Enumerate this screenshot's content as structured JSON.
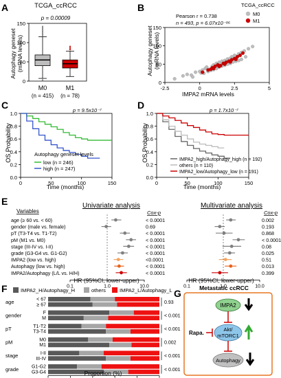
{
  "panels": {
    "A": {
      "letter": "A",
      "title": "TCGA_ccRCC",
      "pvalue": "p = 0.00009",
      "ylabel_line1": "Autophagy geneset",
      "ylabel_line2": "(mRNA levels)",
      "yticks": [
        "0",
        "50",
        "100",
        "150"
      ],
      "groups": [
        {
          "name": "M0",
          "n": "(n = 415)",
          "color": "#bdbdbd",
          "q1": 40,
          "median": 55,
          "q3": 68,
          "whisker_low": 7,
          "whisker_high": 115
        },
        {
          "name": "M1",
          "n": "(n = 78)",
          "color": "#cc0000",
          "q1": 34,
          "median": 45,
          "q3": 55,
          "whisker_low": 12,
          "whisker_high": 78
        }
      ]
    },
    "B": {
      "letter": "B",
      "stats_line1": "Pearson r = 0.738",
      "stats_line2": "n = 493, p = 6.07x10⁻⁸⁶",
      "legend_title": "TCGA_ccRCC",
      "legend": [
        {
          "label": "M0",
          "color": "#bdbdbd"
        },
        {
          "label": "M1",
          "color": "#cc0000"
        }
      ],
      "ylabel_line1": "Autophagy geneset",
      "ylabel_line2": "(mRNA levels)",
      "xlabel": "IMPA2 mRNA levels",
      "xticks": [
        "-2.5",
        "0",
        "2.5",
        "5"
      ],
      "yticks": [
        "0",
        "50",
        "100",
        "150"
      ]
    },
    "C": {
      "letter": "C",
      "pvalue": "p = 9.5x10⁻⁷",
      "ylabel": "OS Probability",
      "xlabel": "Time (months)",
      "xticks": [
        "0",
        "50",
        "100",
        "150"
      ],
      "yticks": [
        "0.0",
        "0.2",
        "0.4",
        "0.6",
        "0.8",
        "1.0"
      ],
      "legend_title": "Autophagy geneset levels",
      "series": [
        {
          "label": "low (n = 246)",
          "color": "#33bb33"
        },
        {
          "label": "high (n = 247)",
          "color": "#3355cc"
        }
      ]
    },
    "D": {
      "letter": "D",
      "pvalue": "p = 1.7x10⁻⁷",
      "ylabel": "OS Probability",
      "xlabel": "Time (months)",
      "xticks": [
        "0",
        "50",
        "100",
        "150"
      ],
      "yticks": [
        "0.0",
        "0.2",
        "0.4",
        "0.6",
        "0.8",
        "1.0"
      ],
      "series": [
        {
          "label": "IMPA2_high/Autophagy_high (n = 192)",
          "color": "#666666"
        },
        {
          "label": "others (n = 110)",
          "color": "#bbbbbb"
        },
        {
          "label": "IMPA2_low/Autophagy_low (n = 191)",
          "color": "#cc0000"
        }
      ]
    },
    "E": {
      "letter": "E",
      "variables_header": "Variables",
      "uni_title": "Univariate analysis",
      "multi_title": "Multivariate analysis",
      "coxp_header": "Cox-p",
      "xlabel": "HR (95%CI, lower-upper)",
      "xticks": [
        "0.1",
        "1.0",
        "10.0"
      ],
      "rows": [
        {
          "label": "age (≥ 60 vs. < 60)",
          "color": "#808080",
          "uni_hr": 1.7,
          "uni_lo": 1.3,
          "uni_hi": 2.4,
          "uni_p": "< 0.0001",
          "multi_hr": 1.6,
          "multi_lo": 1.2,
          "multi_hi": 2.2,
          "multi_p": "0.002"
        },
        {
          "label": "gender (male vs. female)",
          "color": "#808080",
          "uni_hr": 0.94,
          "uni_lo": 0.7,
          "uni_hi": 1.28,
          "uni_p": "0.69",
          "multi_hr": 0.8,
          "multi_lo": 0.58,
          "multi_hi": 1.1,
          "multi_p": "0.193"
        },
        {
          "label": "pT (T3-T4 vs. T1-T2)",
          "color": "#808080",
          "uni_hr": 3.0,
          "uni_lo": 2.2,
          "uni_hi": 4.1,
          "uni_p": "< 0.0001",
          "multi_hr": 1.05,
          "multi_lo": 0.62,
          "multi_hi": 1.8,
          "multi_p": "0.868"
        },
        {
          "label": "pM (M1 vs. M0)",
          "color": "#808080",
          "uni_hr": 4.4,
          "uni_lo": 3.2,
          "uni_hi": 6.0,
          "uni_p": "< 0.0001",
          "multi_hr": 2.6,
          "multi_lo": 1.8,
          "multi_hi": 3.9,
          "multi_p": "< 0.0001"
        },
        {
          "label": "stage (III-IV vs. I-II)",
          "color": "#808080",
          "uni_hr": 3.8,
          "uni_lo": 2.7,
          "uni_hi": 5.3,
          "uni_p": "< 0.0001",
          "multi_hr": 1.7,
          "multi_lo": 0.95,
          "multi_hi": 3.1,
          "multi_p": "0.08"
        },
        {
          "label": "grade (G3-G4 vs. G1-G2)",
          "color": "#808080",
          "uni_hr": 2.6,
          "uni_lo": 1.9,
          "uni_hi": 3.6,
          "uni_p": "< 0.0001",
          "multi_hr": 1.5,
          "multi_lo": 1.05,
          "multi_hi": 2.1,
          "multi_p": "0.025"
        },
        {
          "label": "IMPA2 (low vs. high)",
          "color": "#f4a460",
          "uni_hr": 2.0,
          "uni_lo": 1.5,
          "uni_hi": 2.7,
          "uni_p": "<0.0001",
          "multi_hr": 1.15,
          "multi_lo": 0.76,
          "multi_hi": 1.7,
          "multi_p": "0.51"
        },
        {
          "label": "Autophagy (low vs. high)",
          "color": "#e8621a",
          "uni_hr": 2.1,
          "uni_lo": 1.55,
          "uni_hi": 2.85,
          "uni_p": "< 0.0001",
          "multi_hr": 1.6,
          "multi_lo": 1.1,
          "multi_hi": 2.3,
          "multi_p": "0.013"
        },
        {
          "label": "IMPA2/Autophagy (L/L vs. H/H)",
          "color": "#cc0000",
          "uni_hr": 2.4,
          "uni_lo": 1.7,
          "uni_hi": 3.4,
          "uni_p": "< 0.0001",
          "multi_hr": 0.8,
          "multi_lo": 0.48,
          "multi_hi": 1.35,
          "multi_p": "0.399"
        }
      ]
    },
    "F": {
      "letter": "F",
      "legend": [
        {
          "label": "IMPA2_H/Autophagy_H",
          "color": "#595959"
        },
        {
          "label": "others",
          "color": "#a6a6a6"
        },
        {
          "label": "IMPA2_L/Autophagy_L",
          "color": "#ee1111"
        }
      ],
      "xlabel": "Proportion (%)",
      "xticks": [
        "0",
        "20",
        "40",
        "60",
        "80",
        "100"
      ],
      "groups": [
        {
          "name": "age",
          "pvalue": "0.93",
          "bars": [
            {
              "label": "< 67",
              "dark": 38,
              "gray": 22,
              "red": 40
            },
            {
              "label": "≥ 67",
              "dark": 40,
              "gray": 22,
              "red": 38
            }
          ]
        },
        {
          "name": "gender",
          "pvalue": "< 0.001",
          "bars": [
            {
              "label": "F",
              "dark": 55,
              "gray": 22,
              "red": 23
            },
            {
              "label": "M",
              "dark": 32,
              "gray": 22,
              "red": 46
            }
          ]
        },
        {
          "name": "pT",
          "pvalue": "< 0.001",
          "bars": [
            {
              "label": "T1-T2",
              "dark": 30,
              "gray": 22,
              "red": 48
            },
            {
              "label": "T3-T4",
              "dark": 52,
              "gray": 22,
              "red": 26
            }
          ]
        },
        {
          "name": "pM",
          "pvalue": "0.002",
          "bars": [
            {
              "label": "M0",
              "dark": 36,
              "gray": 22,
              "red": 42
            },
            {
              "label": "M1",
              "dark": 55,
              "gray": 20,
              "red": 25
            }
          ]
        },
        {
          "name": "stage",
          "pvalue": "< 0.001",
          "bars": [
            {
              "label": "I-II",
              "dark": 28,
              "gray": 22,
              "red": 50
            },
            {
              "label": "III-IV",
              "dark": 52,
              "gray": 22,
              "red": 26
            }
          ]
        },
        {
          "name": "grade",
          "pvalue": "< 0.001",
          "bars": [
            {
              "label": "G1-G2",
              "dark": 26,
              "gray": 22,
              "red": 52
            },
            {
              "label": "G3-G4",
              "dark": 50,
              "gray": 22,
              "red": 28
            }
          ]
        }
      ]
    },
    "G": {
      "letter": "G",
      "title": "Metastatic ccRCC",
      "node_impa2": "IMPA2",
      "node_akt_line1": "Akt/",
      "node_akt_line2": "mTORC1",
      "node_autophagy": "Autophagy",
      "drug": "Rapa.",
      "colors": {
        "border": "#e87722",
        "impa2": "#8fd18f",
        "akt": "#8ec6ea",
        "autophagy": "#c0c0c0",
        "inhibit": "#cc0000",
        "up": "#33aa33"
      }
    }
  },
  "chart_data": [
    {
      "panel": "A",
      "type": "box",
      "title": "TCGA_ccRCC",
      "ylabel": "Autophagy geneset (mRNA levels)",
      "categories": [
        "M0",
        "M1"
      ],
      "ylim": [
        0,
        150
      ],
      "summary": [
        {
          "name": "M0",
          "q1": 40,
          "median": 55,
          "q3": 68,
          "whisker_low": 7,
          "whisker_high": 115
        },
        {
          "name": "M1",
          "q1": 34,
          "median": 45,
          "q3": 55,
          "whisker_low": 12,
          "whisker_high": 78
        }
      ]
    },
    {
      "panel": "B",
      "type": "scatter",
      "xlabel": "IMPA2 mRNA levels",
      "ylabel": "Autophagy geneset (mRNA levels)",
      "xlim": [
        -2.5,
        5
      ],
      "ylim": [
        0,
        150
      ],
      "series": [
        {
          "name": "M0",
          "x": [
            -1.8,
            -1.2,
            -0.9,
            -0.6,
            -0.3,
            0.0,
            0.2,
            0.4,
            0.5,
            0.7,
            0.9,
            1.0,
            1.1,
            1.2,
            1.3,
            1.4,
            1.5,
            1.6,
            1.7,
            1.8,
            1.9,
            2.0,
            2.1,
            2.2,
            2.3,
            2.4,
            2.5,
            2.6,
            2.8,
            3.0,
            3.2,
            3.5,
            3.8,
            0.6,
            1.0,
            1.4,
            1.8,
            2.2,
            2.6,
            3.0,
            0.3,
            0.8,
            1.2,
            1.6,
            2.0,
            2.4,
            2.8,
            3.3,
            -0.5,
            0.1
          ],
          "y": [
            10,
            18,
            22,
            20,
            28,
            30,
            34,
            38,
            42,
            36,
            44,
            48,
            40,
            52,
            46,
            55,
            50,
            58,
            54,
            60,
            57,
            64,
            62,
            66,
            70,
            68,
            74,
            72,
            78,
            82,
            86,
            92,
            98,
            30,
            35,
            42,
            47,
            52,
            58,
            63,
            25,
            33,
            38,
            45,
            50,
            56,
            60,
            70,
            15,
            26
          ]
        },
        {
          "name": "M1",
          "x": [
            0.2,
            0.6,
            0.9,
            1.1,
            1.3,
            1.5,
            1.7,
            1.9,
            2.1,
            2.3,
            2.5,
            2.7,
            2.9,
            3.1,
            1.0,
            1.4,
            1.8,
            2.2,
            2.6,
            0.8
          ],
          "y": [
            28,
            34,
            40,
            44,
            48,
            46,
            52,
            55,
            58,
            62,
            65,
            70,
            74,
            80,
            38,
            44,
            50,
            56,
            63,
            36
          ]
        }
      ]
    },
    {
      "panel": "C",
      "type": "line",
      "xlabel": "Time (months)",
      "ylabel": "OS Probability",
      "xlim": [
        0,
        150
      ],
      "ylim": [
        0,
        1.0
      ],
      "series": [
        {
          "name": "low (n = 246)",
          "x": [
            0,
            10,
            20,
            30,
            40,
            50,
            60,
            70,
            80,
            90,
            100,
            110,
            120,
            130,
            150
          ],
          "y": [
            1.0,
            0.96,
            0.92,
            0.87,
            0.83,
            0.79,
            0.75,
            0.7,
            0.66,
            0.62,
            0.6,
            0.58,
            0.58,
            0.58,
            0.58
          ]
        },
        {
          "name": "high (n = 247)",
          "x": [
            0,
            10,
            20,
            30,
            40,
            50,
            60,
            70,
            80,
            90,
            100,
            110,
            120,
            130
          ],
          "y": [
            1.0,
            0.88,
            0.76,
            0.66,
            0.58,
            0.51,
            0.46,
            0.42,
            0.39,
            0.36,
            0.33,
            0.3,
            0.3,
            0.3
          ]
        }
      ]
    },
    {
      "panel": "D",
      "type": "line",
      "xlabel": "Time (months)",
      "ylabel": "OS Probability",
      "xlim": [
        0,
        150
      ],
      "ylim": [
        0,
        1.0
      ],
      "series": [
        {
          "name": "IMPA2_high/Autophagy_high (n = 192)",
          "x": [
            0,
            10,
            20,
            30,
            40,
            50,
            60,
            70,
            80,
            90,
            100,
            110,
            120
          ],
          "y": [
            1.0,
            0.87,
            0.75,
            0.64,
            0.56,
            0.5,
            0.45,
            0.41,
            0.38,
            0.35,
            0.33,
            0.3,
            0.3
          ]
        },
        {
          "name": "others (n = 110)",
          "x": [
            0,
            10,
            20,
            30,
            40,
            50,
            60,
            70,
            80,
            90,
            100,
            110
          ],
          "y": [
            1.0,
            0.9,
            0.8,
            0.72,
            0.66,
            0.6,
            0.55,
            0.52,
            0.5,
            0.48,
            0.46,
            0.46
          ]
        },
        {
          "name": "IMPA2_low/Autophagy_low (n = 191)",
          "x": [
            0,
            10,
            20,
            30,
            40,
            50,
            60,
            70,
            80,
            90,
            100,
            110,
            120,
            130,
            150
          ],
          "y": [
            1.0,
            0.96,
            0.93,
            0.89,
            0.85,
            0.81,
            0.78,
            0.74,
            0.71,
            0.68,
            0.67,
            0.66,
            0.66,
            0.66,
            0.66
          ]
        }
      ]
    },
    {
      "panel": "E",
      "type": "forest",
      "xlabel": "HR (95%CI, lower-upper)",
      "xscale": "log",
      "xlim": [
        0.1,
        10
      ]
    },
    {
      "panel": "F",
      "type": "bar",
      "xlabel": "Proportion (%)",
      "xlim": [
        0,
        100
      ],
      "orientation": "horizontal",
      "stacked": true
    }
  ]
}
